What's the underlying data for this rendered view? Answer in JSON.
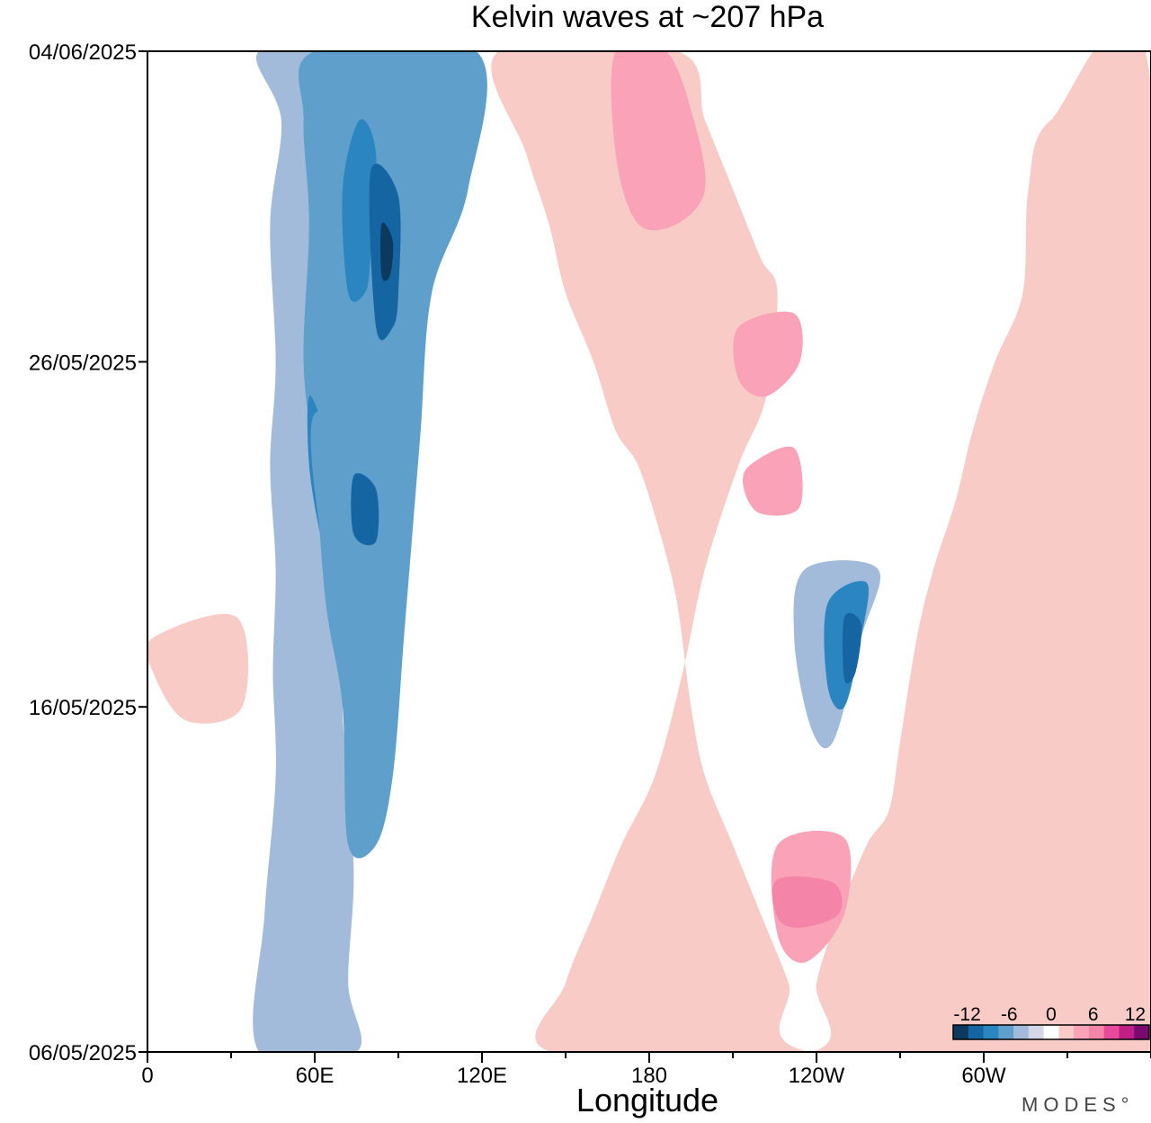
{
  "chart_data": {
    "type": "heatmap",
    "title": "Kelvin waves at ~207 hPa",
    "xlabel": "Longitude",
    "ylabel": "",
    "x_ticks": [
      "0",
      "60E",
      "120E",
      "180",
      "120W",
      "60W"
    ],
    "x_tick_values": [
      0,
      60,
      120,
      180,
      240,
      300
    ],
    "xlim": [
      0,
      360
    ],
    "y_ticks": [
      "04/06/2025",
      "26/05/2025",
      "16/05/2025",
      "06/05/2025"
    ],
    "y_tick_values": [
      29,
      20,
      10,
      0
    ],
    "ylim": [
      0,
      29
    ],
    "colorbar": {
      "tick_labels": [
        "-12",
        "-6",
        "0",
        "6",
        "12"
      ],
      "tick_values": [
        -12,
        -6,
        0,
        6,
        12
      ],
      "levels": [
        -14,
        -12,
        -10,
        -8,
        -6,
        -4,
        -2,
        2,
        4,
        6,
        8,
        10,
        12,
        14
      ],
      "colors": [
        "#0b3a5e",
        "#1565a3",
        "#2a85c1",
        "#5e9fcc",
        "#a2bbdb",
        "#d4d7e8",
        "#ffffff",
        "#f8cbc6",
        "#f9a2b8",
        "#f484a8",
        "#e8499a",
        "#c11f87",
        "#7a0a70"
      ]
    },
    "features": [
      {
        "kind": "negative",
        "level": -4,
        "path": [
          [
            40,
            29
          ],
          [
            75,
            29
          ],
          [
            76,
            27
          ],
          [
            72,
            24
          ],
          [
            66,
            21
          ],
          [
            62,
            19
          ],
          [
            68,
            17
          ],
          [
            70,
            15
          ],
          [
            72,
            13
          ],
          [
            70,
            10
          ],
          [
            72,
            8
          ],
          [
            74,
            5
          ],
          [
            72,
            2
          ],
          [
            75,
            0
          ],
          [
            40,
            0
          ],
          [
            42,
            4
          ],
          [
            46,
            8
          ],
          [
            45,
            11
          ],
          [
            46,
            14
          ],
          [
            44,
            17
          ],
          [
            46,
            20
          ],
          [
            44,
            24
          ],
          [
            48,
            27
          ]
        ]
      },
      {
        "kind": "negative",
        "level": -6,
        "path": [
          [
            60,
            29
          ],
          [
            118,
            29
          ],
          [
            115,
            25
          ],
          [
            102,
            22
          ],
          [
            98,
            18
          ],
          [
            95,
            15
          ],
          [
            92,
            12
          ],
          [
            88,
            8
          ],
          [
            82,
            6
          ],
          [
            72,
            6
          ],
          [
            70,
            10
          ],
          [
            64,
            13
          ],
          [
            60,
            17
          ],
          [
            56,
            20
          ],
          [
            58,
            24
          ],
          [
            56,
            27
          ]
        ]
      },
      {
        "kind": "negative",
        "level": -8,
        "path": [
          [
            76,
            27
          ],
          [
            82,
            26
          ],
          [
            80,
            23
          ],
          [
            78,
            22
          ],
          [
            72,
            22
          ],
          [
            70,
            25
          ]
        ]
      },
      {
        "kind": "negative",
        "level": -8,
        "path": [
          [
            58,
            19
          ],
          [
            64,
            18
          ],
          [
            70,
            17
          ],
          [
            70,
            15
          ],
          [
            66,
            14
          ],
          [
            62,
            15
          ],
          [
            58,
            17
          ]
        ]
      },
      {
        "kind": "negative",
        "level": -10,
        "path": [
          [
            80,
            25.5
          ],
          [
            90,
            24.8
          ],
          [
            90,
            22
          ],
          [
            88,
            21
          ],
          [
            82,
            21
          ]
        ]
      },
      {
        "kind": "negative",
        "level": -12,
        "path": [
          [
            84,
            24
          ],
          [
            88,
            23.5
          ],
          [
            87,
            22.5
          ],
          [
            84,
            22.5
          ]
        ]
      },
      {
        "kind": "negative",
        "level": -6,
        "path": [
          [
            60,
            18.5
          ],
          [
            84,
            17.3
          ],
          [
            88,
            15
          ],
          [
            78,
            13
          ],
          [
            68,
            13
          ],
          [
            62,
            15
          ]
        ]
      },
      {
        "kind": "negative",
        "level": -10,
        "path": [
          [
            74,
            16.7
          ],
          [
            82,
            16.3
          ],
          [
            82,
            14.8
          ],
          [
            74,
            15
          ]
        ]
      },
      {
        "kind": "negative",
        "level": -4,
        "path": [
          [
            236,
            14
          ],
          [
            262,
            14
          ],
          [
            256,
            12
          ],
          [
            246,
            9
          ],
          [
            238,
            9.4
          ],
          [
            232,
            12
          ]
        ]
      },
      {
        "kind": "negative",
        "level": -8,
        "path": [
          [
            244,
            13
          ],
          [
            258,
            13.6
          ],
          [
            256,
            12
          ],
          [
            250,
            10
          ],
          [
            244,
            10.6
          ]
        ]
      },
      {
        "kind": "negative",
        "level": -10,
        "path": [
          [
            250,
            12.6
          ],
          [
            256,
            12.4
          ],
          [
            254,
            11
          ],
          [
            250,
            10.8
          ]
        ]
      },
      {
        "kind": "positive",
        "level": 2,
        "path": [
          [
            126,
            29
          ],
          [
            190,
            29
          ],
          [
            200,
            27
          ],
          [
            210,
            25
          ],
          [
            220,
            23
          ],
          [
            226,
            22
          ],
          [
            222,
            19
          ],
          [
            212,
            17
          ],
          [
            200,
            14
          ],
          [
            192,
            11
          ],
          [
            182,
            8
          ],
          [
            170,
            6
          ],
          [
            160,
            4
          ],
          [
            150,
            2
          ],
          [
            145,
            0
          ],
          [
            238,
            0
          ],
          [
            240,
            2
          ],
          [
            248,
            4
          ],
          [
            258,
            6
          ],
          [
            266,
            7
          ],
          [
            270,
            9
          ],
          [
            276,
            12
          ],
          [
            282,
            14
          ],
          [
            290,
            16
          ],
          [
            296,
            18
          ],
          [
            304,
            20
          ],
          [
            314,
            22
          ],
          [
            316,
            25
          ],
          [
            324,
            27
          ],
          [
            360,
            28
          ],
          [
            360,
            0
          ],
          [
            238,
            0
          ],
          [
            230,
            2
          ],
          [
            220,
            4
          ],
          [
            210,
            6
          ],
          [
            200,
            8
          ],
          [
            195,
            10
          ],
          [
            190,
            13
          ],
          [
            184,
            15
          ],
          [
            176,
            17
          ],
          [
            168,
            18
          ],
          [
            160,
            20
          ],
          [
            150,
            22
          ],
          [
            144,
            24
          ],
          [
            136,
            26
          ]
        ]
      },
      {
        "kind": "positive",
        "level": 4,
        "path": [
          [
            168,
            29
          ],
          [
            186,
            29
          ],
          [
            196,
            27
          ],
          [
            200,
            25
          ],
          [
            190,
            24
          ],
          [
            176,
            24
          ],
          [
            168,
            26
          ]
        ]
      },
      {
        "kind": "positive",
        "level": 4,
        "path": [
          [
            212,
            21
          ],
          [
            232,
            21.4
          ],
          [
            234,
            20
          ],
          [
            222,
            19
          ],
          [
            212,
            19.5
          ]
        ]
      },
      {
        "kind": "positive",
        "level": 4,
        "path": [
          [
            216,
            17
          ],
          [
            232,
            17.5
          ],
          [
            234,
            15.8
          ],
          [
            220,
            15.6
          ],
          [
            214,
            16.3
          ]
        ]
      },
      {
        "kind": "positive",
        "level": 4,
        "path": [
          [
            226,
            6
          ],
          [
            250,
            6.2
          ],
          [
            250,
            4
          ],
          [
            236,
            2.6
          ],
          [
            226,
            3.4
          ]
        ]
      },
      {
        "kind": "positive",
        "level": 6,
        "path": [
          [
            226,
            5
          ],
          [
            246,
            4.9
          ],
          [
            248,
            4
          ],
          [
            234,
            3.6
          ],
          [
            226,
            3.9
          ]
        ]
      },
      {
        "kind": "positive",
        "level": 2,
        "path": [
          [
            2,
            12
          ],
          [
            32,
            12.6
          ],
          [
            34,
            10
          ],
          [
            14,
            9.6
          ],
          [
            2,
            11
          ]
        ]
      }
    ]
  }
}
